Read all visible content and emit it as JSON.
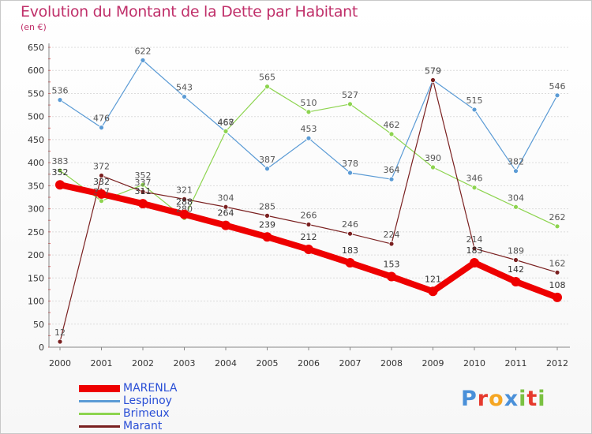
{
  "title": "Evolution du Montant de la Dette par Habitant",
  "subtitle": "(en €)",
  "logo": {
    "text": "Proxiti",
    "colors": [
      "#4a90d9",
      "#e63a2e",
      "#f5a623",
      "#4a90d9",
      "#7bc142",
      "#e63a2e",
      "#7bc142"
    ]
  },
  "chart_data": {
    "type": "line",
    "title": "Evolution du Montant de la Dette par Habitant",
    "ylabel": "(en €)",
    "xlabel": "",
    "x": [
      "2000",
      "2001",
      "2002",
      "2003",
      "2004",
      "2005",
      "2006",
      "2007",
      "2008",
      "2009",
      "2010",
      "2011",
      "2012"
    ],
    "ylim": [
      0,
      650
    ],
    "yticks": [
      0,
      50,
      100,
      150,
      200,
      250,
      300,
      350,
      400,
      450,
      500,
      550,
      600,
      650
    ],
    "grid": "horizontal",
    "legend_position": "bottom-left",
    "series": [
      {
        "name": "MARENLA",
        "color": "#ee0000",
        "width": 8,
        "label_color": "#333333",
        "values": [
          352,
          332,
          311,
          288,
          264,
          239,
          212,
          183,
          153,
          121,
          183,
          142,
          108
        ]
      },
      {
        "name": "Lespinoy",
        "color": "#5b9bd5",
        "width": 1.2,
        "label_color": "#555555",
        "values": [
          536,
          476,
          622,
          543,
          467,
          387,
          453,
          378,
          364,
          579,
          515,
          382,
          546
        ]
      },
      {
        "name": "Brimeux",
        "color": "#8dd44f",
        "width": 1.2,
        "label_color": "#555555",
        "values": [
          383,
          317,
          352,
          280,
          468,
          565,
          510,
          527,
          462,
          390,
          346,
          304,
          262
        ]
      },
      {
        "name": "Marant",
        "color": "#7a2020",
        "width": 1.2,
        "label_color": "#555555",
        "values": [
          12,
          372,
          337,
          321,
          304,
          285,
          266,
          246,
          224,
          579,
          214,
          189,
          162
        ]
      }
    ]
  }
}
